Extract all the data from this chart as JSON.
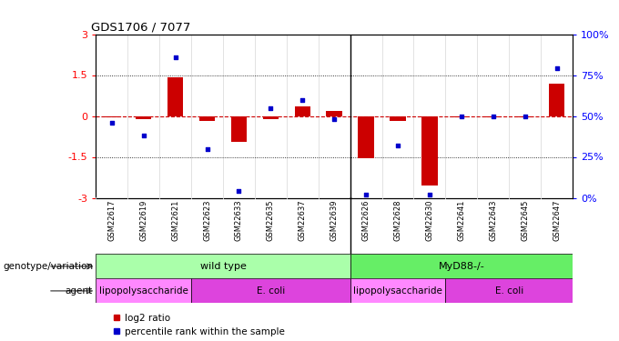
{
  "title": "GDS1706 / 7077",
  "samples": [
    "GSM22617",
    "GSM22619",
    "GSM22621",
    "GSM22623",
    "GSM22633",
    "GSM22635",
    "GSM22637",
    "GSM22639",
    "GSM22626",
    "GSM22628",
    "GSM22630",
    "GSM22641",
    "GSM22643",
    "GSM22645",
    "GSM22647"
  ],
  "log2_ratio": [
    -0.05,
    -0.1,
    1.42,
    -0.18,
    -0.95,
    -0.1,
    0.35,
    0.18,
    -1.55,
    -0.18,
    -2.55,
    -0.05,
    -0.05,
    -0.05,
    1.18
  ],
  "percentile_rank": [
    46,
    38,
    86,
    30,
    4,
    55,
    60,
    48,
    2,
    32,
    2,
    50,
    50,
    50,
    79
  ],
  "ylim": [
    -3,
    3
  ],
  "y2lim": [
    0,
    100
  ],
  "bar_color": "#cc0000",
  "dot_color": "#0000cc",
  "hline_zero_color": "#cc0000",
  "hline_other_color": "#000000",
  "yticks_left": [
    -3,
    -1.5,
    0,
    1.5,
    3
  ],
  "yticks_right": [
    0,
    25,
    50,
    75,
    100
  ],
  "genotype_groups": [
    {
      "label": "wild type",
      "start": 0,
      "end": 7,
      "color": "#aaffaa"
    },
    {
      "label": "MyD88-/-",
      "start": 8,
      "end": 14,
      "color": "#66ee66"
    }
  ],
  "agent_groups": [
    {
      "label": "lipopolysaccharide",
      "start": 0,
      "end": 2,
      "color": "#ff88ff"
    },
    {
      "label": "E. coli",
      "start": 3,
      "end": 7,
      "color": "#dd44dd"
    },
    {
      "label": "lipopolysaccharide",
      "start": 8,
      "end": 10,
      "color": "#ff88ff"
    },
    {
      "label": "E. coli",
      "start": 11,
      "end": 14,
      "color": "#dd44dd"
    }
  ],
  "legend_log2": "log2 ratio",
  "legend_pct": "percentile rank within the sample",
  "row_label_geno": "genotype/variation",
  "row_label_agent": "agent"
}
